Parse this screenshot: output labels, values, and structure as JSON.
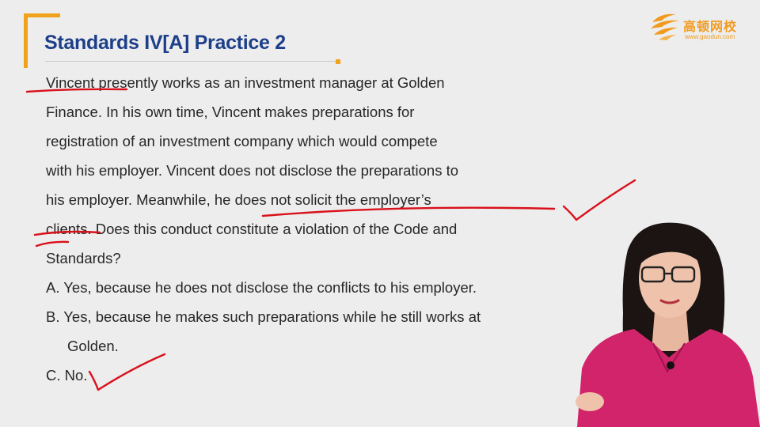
{
  "slide": {
    "title": "Standards IV[A] Practice 2",
    "accent_color": "#f0a21b",
    "title_color": "#1d3f8a"
  },
  "logo": {
    "name_cn": "高顿网校",
    "url": "www.gaodun.com",
    "icon": "gaodun-wing-logo-icon"
  },
  "question": {
    "lines": [
      "Vincent presently works as an investment manager at Golden",
      "Finance. In his own time, Vincent makes preparations for",
      "registration of an investment company which would compete",
      "with his employer. Vincent does not disclose the preparations to",
      "his employer. Meanwhile, he does not solicit the employer’s",
      "clients. Does this conduct constitute a violation of the Code and",
      "Standards?"
    ]
  },
  "options": [
    {
      "lines": [
        "A. Yes, because he does not disclose the conflicts to his employer."
      ]
    },
    {
      "lines": [
        "B. Yes, because he makes such preparations while he still works at",
        "Golden."
      ]
    },
    {
      "lines": [
        "C. No."
      ]
    }
  ],
  "annotations": {
    "ink_color": "#d9111b",
    "marks": [
      "underline-vincent",
      "underline-does-not-solicit",
      "underline-clients",
      "checkmark-solicit",
      "checkmark-option-c"
    ]
  }
}
